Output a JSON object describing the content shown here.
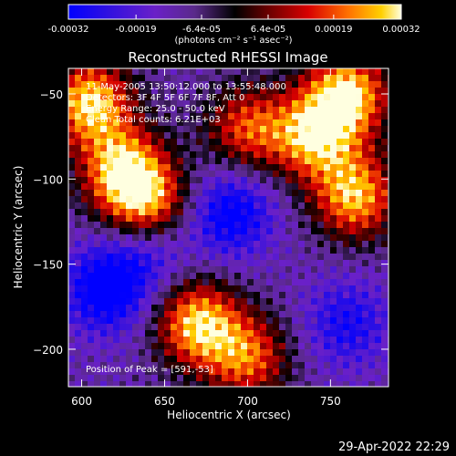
{
  "chart_data": {
    "type": "heatmap",
    "title": "Reconstructed RHESSI Image",
    "xlabel": "Heliocentric X (arcsec)",
    "ylabel": "Heliocentric Y (arcsec)",
    "xlim": [
      592,
      785
    ],
    "ylim": [
      -222,
      -35
    ],
    "x_ticks": [
      600,
      650,
      700,
      750
    ],
    "y_ticks": [
      -50,
      -100,
      -150,
      -200
    ],
    "colorbar": {
      "range": [
        -0.00032,
        0.00032
      ],
      "tick_labels": [
        "-0.00032",
        "-0.00019",
        "-6.4e-05",
        "6.4e-05",
        "0.00019",
        "0.00032"
      ],
      "tick_values": [
        -0.00032,
        -0.00019,
        -6.4e-05,
        6.4e-05,
        0.00019,
        0.00032
      ],
      "unit_label": "(photons cm⁻² s⁻¹ asec⁻²)"
    },
    "info_lines": [
      "11-May-2005 13:50:12.000 to 13:55:48.000",
      "Detectors: 3F 4F 5F 6F 7F 8F, Att 0",
      "Energy Range: 25.0 - 50.0 keV",
      "Clean     Total counts: 6.21E+03"
    ],
    "peak_label": "Position of Peak = [591,-53]",
    "bright_regions": [
      {
        "x": 605,
        "y": -55,
        "intensity": 0.95
      },
      {
        "x": 625,
        "y": -95,
        "intensity": 0.85
      },
      {
        "x": 640,
        "y": -115,
        "intensity": 0.7
      },
      {
        "x": 700,
        "y": -70,
        "intensity": 0.55
      },
      {
        "x": 740,
        "y": -75,
        "intensity": 0.8
      },
      {
        "x": 760,
        "y": -50,
        "intensity": 0.95
      },
      {
        "x": 765,
        "y": -110,
        "intensity": 0.85
      },
      {
        "x": 670,
        "y": -185,
        "intensity": 0.9
      },
      {
        "x": 700,
        "y": -205,
        "intensity": 0.6
      }
    ],
    "dark_regions": [
      {
        "x": 615,
        "y": -165,
        "intensity": -0.85
      },
      {
        "x": 690,
        "y": -120,
        "intensity": -0.75
      },
      {
        "x": 760,
        "y": -185,
        "intensity": -0.55
      },
      {
        "x": 640,
        "y": -140,
        "intensity": -0.5
      }
    ]
  },
  "timestamp": "29-Apr-2022 22:29"
}
